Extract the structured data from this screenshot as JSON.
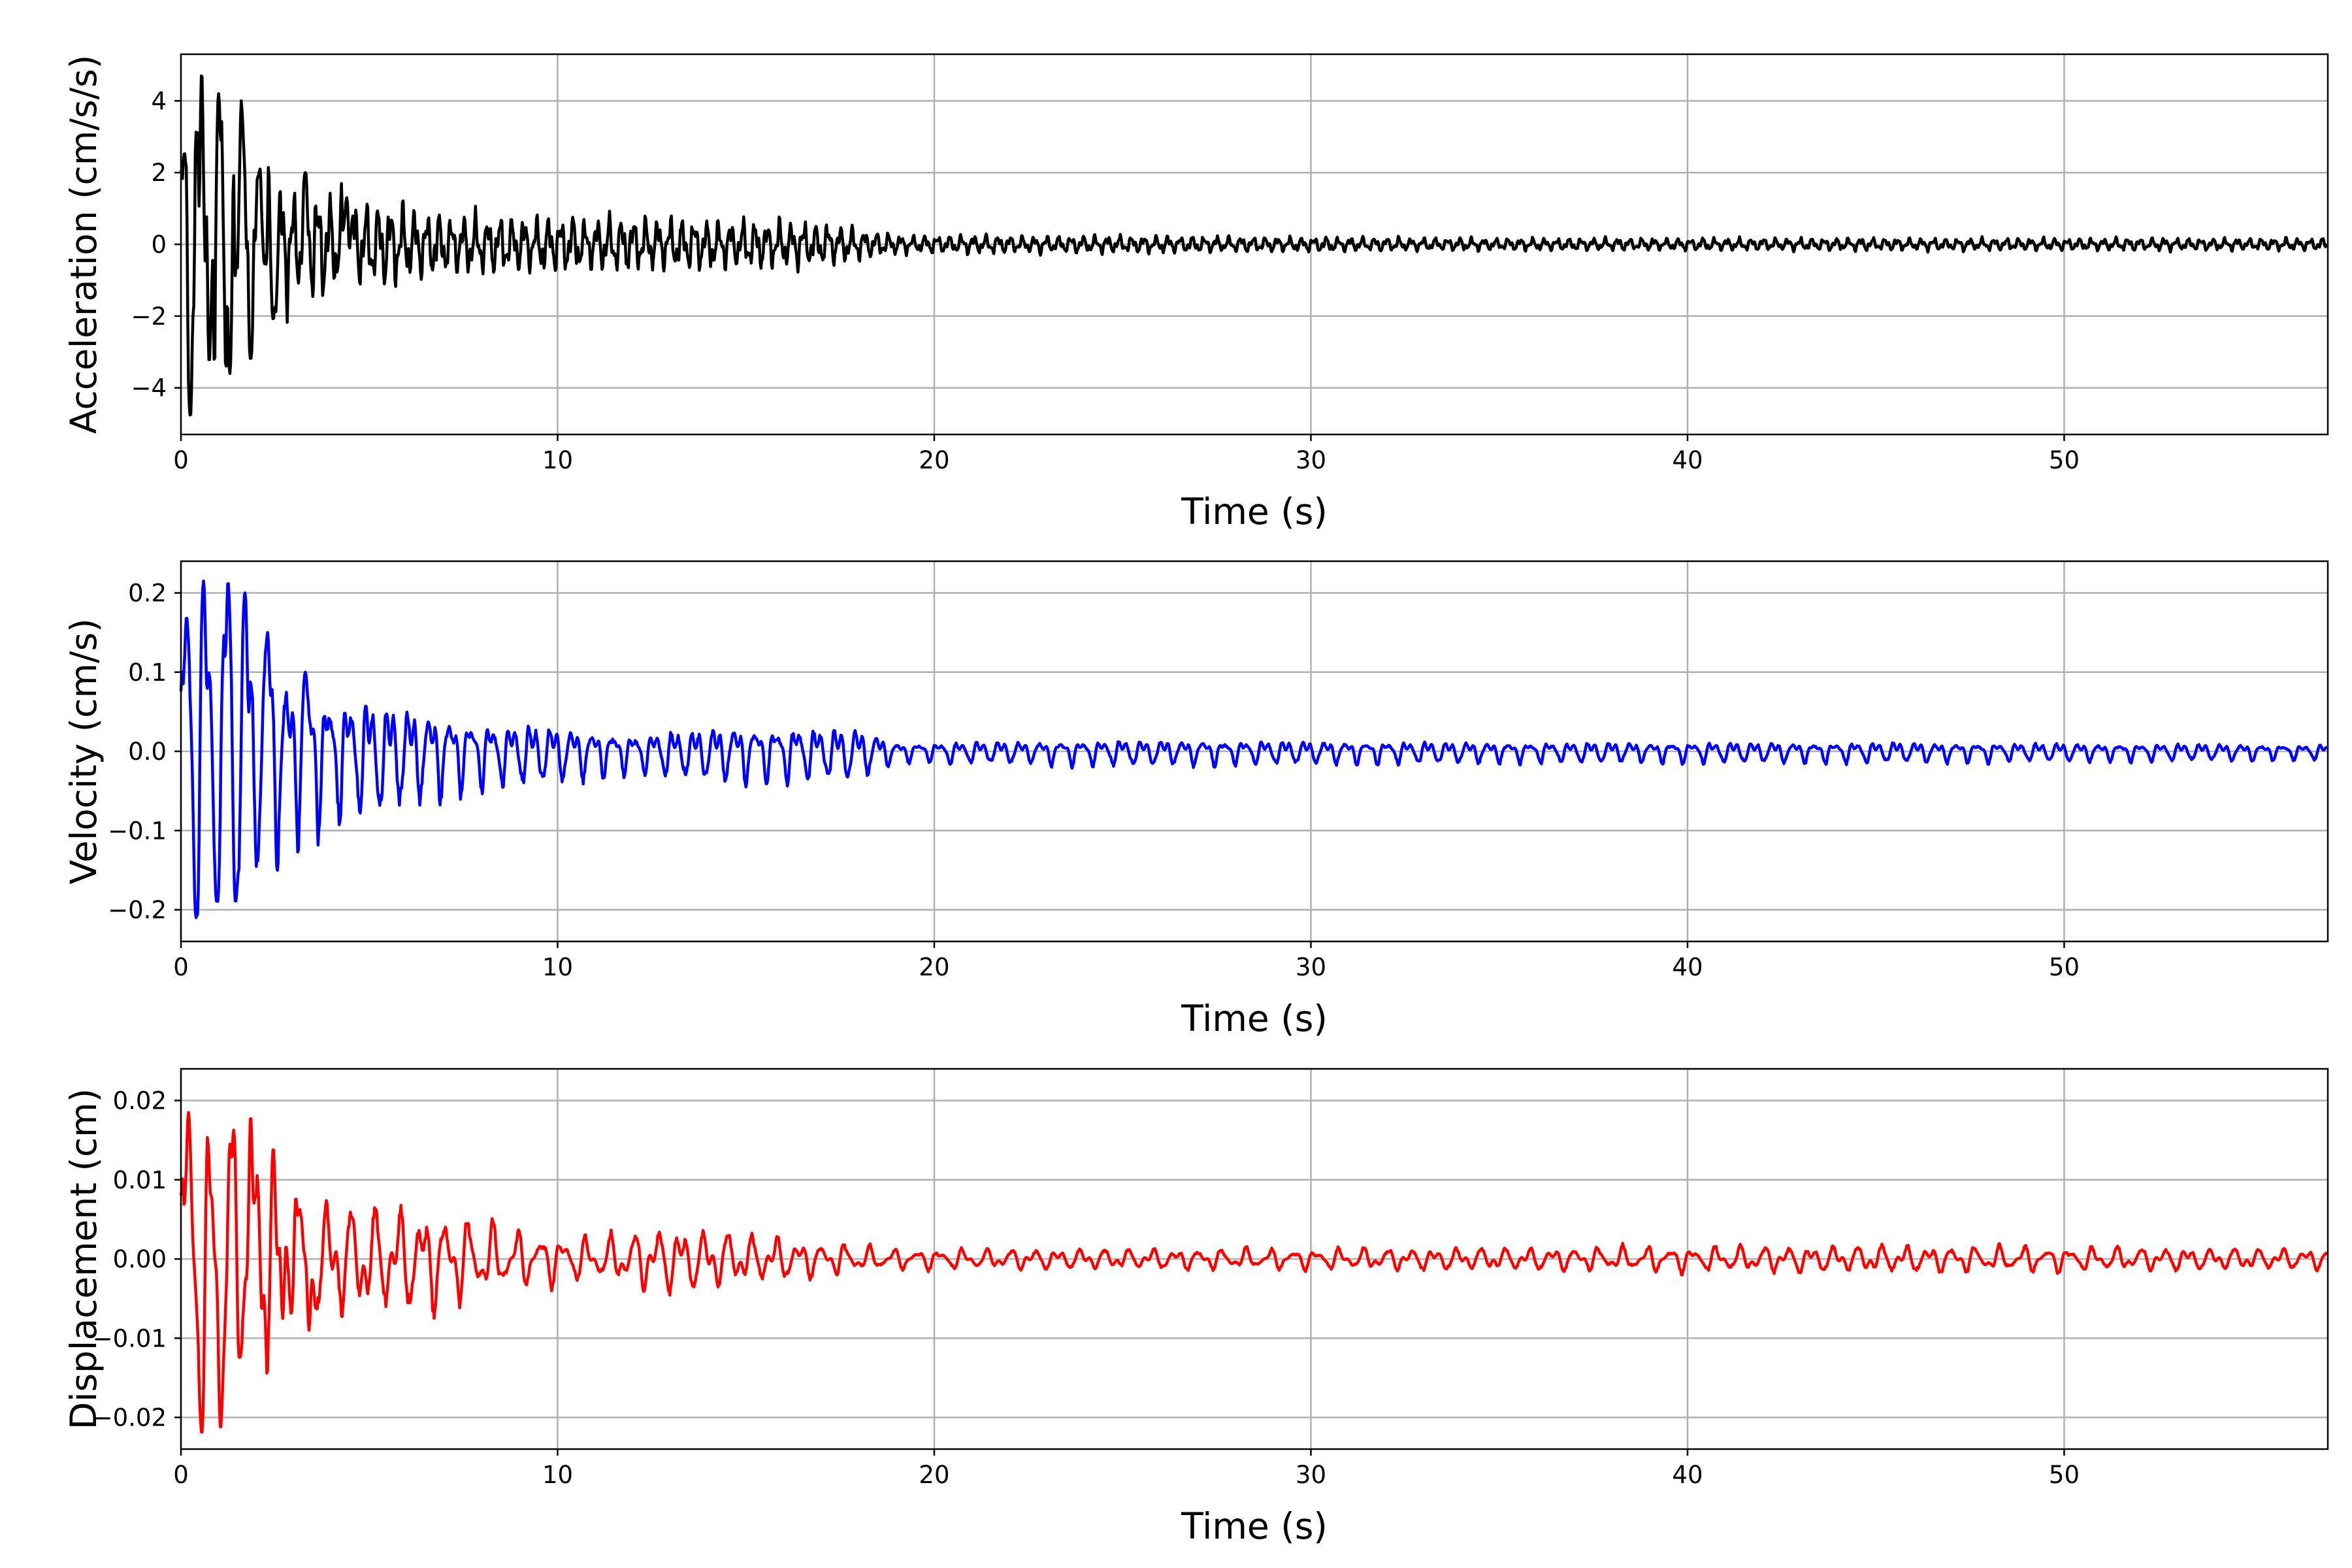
{
  "figure": {
    "background": "#ffffff",
    "grid_color": "#b0b0b0"
  },
  "chart_data": [
    {
      "type": "line",
      "title": "",
      "xlabel": "Time (s)",
      "ylabel": "Acceleration (cm/s/s)",
      "xlim": [
        0,
        57
      ],
      "ylim": [
        -5.3,
        5.3
      ],
      "xticks": [
        0,
        10,
        20,
        30,
        40,
        50
      ],
      "xtick_labels": [
        "0",
        "10",
        "20",
        "30",
        "40",
        "50"
      ],
      "yticks": [
        -4,
        -2,
        0,
        2,
        4
      ],
      "ytick_labels": [
        "−4",
        "−2",
        "0",
        "2",
        "4"
      ],
      "grid": true,
      "legend": "none",
      "color": "#000000",
      "envelope": [
        [
          0,
          4.8
        ],
        [
          1,
          4.3
        ],
        [
          2,
          2.8
        ],
        [
          3,
          1.9
        ],
        [
          5,
          1.4
        ],
        [
          7,
          1.0
        ],
        [
          10,
          0.9
        ],
        [
          13,
          0.85
        ],
        [
          17,
          0.7
        ],
        [
          19,
          0.3
        ],
        [
          25,
          0.28
        ],
        [
          35,
          0.2
        ],
        [
          45,
          0.2
        ],
        [
          57,
          0.2
        ]
      ],
      "series": [
        {
          "peaks": [
            [
              0.1,
              2.6
            ],
            [
              0.25,
              -4.8
            ],
            [
              0.55,
              4.8
            ],
            [
              0.75,
              -3.3
            ],
            [
              1.0,
              4.2
            ],
            [
              1.3,
              -3.6
            ],
            [
              1.6,
              4.0
            ],
            [
              1.85,
              -3.2
            ],
            [
              2.1,
              2.1
            ],
            [
              2.45,
              -2.1
            ],
            [
              3.3,
              2.0
            ],
            [
              4.4,
              1.3
            ]
          ]
        }
      ]
    },
    {
      "type": "line",
      "title": "",
      "xlabel": "Time (s)",
      "ylabel": "Velocity (cm/s)",
      "xlim": [
        0,
        57
      ],
      "ylim": [
        -0.24,
        0.24
      ],
      "xticks": [
        0,
        10,
        20,
        30,
        40,
        50
      ],
      "xtick_labels": [
        "0",
        "10",
        "20",
        "30",
        "40",
        "50"
      ],
      "yticks": [
        -0.2,
        -0.1,
        0.0,
        0.1,
        0.2
      ],
      "ytick_labels": [
        "−0.2",
        "−0.1",
        "0.0",
        "0.1",
        "0.2"
      ],
      "grid": true,
      "legend": "none",
      "color": "#0000ff",
      "envelope": [
        [
          0,
          0.21
        ],
        [
          1.5,
          0.21
        ],
        [
          2.5,
          0.15
        ],
        [
          4,
          0.1
        ],
        [
          6,
          0.08
        ],
        [
          8,
          0.05
        ],
        [
          10,
          0.045
        ],
        [
          12,
          0.03
        ],
        [
          15,
          0.045
        ],
        [
          18,
          0.04
        ],
        [
          19,
          0.015
        ],
        [
          25,
          0.02
        ],
        [
          35,
          0.016
        ],
        [
          45,
          0.016
        ],
        [
          57,
          0.012
        ]
      ],
      "series": [
        {
          "peaks": [
            [
              0.15,
              0.17
            ],
            [
              0.4,
              -0.21
            ],
            [
              0.6,
              0.215
            ],
            [
              0.95,
              -0.19
            ],
            [
              1.25,
              0.215
            ],
            [
              1.45,
              -0.19
            ],
            [
              1.7,
              0.2
            ],
            [
              2.3,
              0.15
            ],
            [
              3.3,
              0.1
            ]
          ]
        }
      ]
    },
    {
      "type": "line",
      "title": "",
      "xlabel": "Time (s)",
      "ylabel": "Displacement (cm)",
      "xlim": [
        0,
        57
      ],
      "ylim": [
        -0.024,
        0.024
      ],
      "xticks": [
        0,
        10,
        20,
        30,
        40,
        50
      ],
      "xtick_labels": [
        "0",
        "10",
        "20",
        "30",
        "40",
        "50"
      ],
      "yticks": [
        -0.02,
        -0.01,
        0.0,
        0.01,
        0.02
      ],
      "ytick_labels": [
        "−0.02",
        "−0.01",
        "0.00",
        "0.01",
        "0.02"
      ],
      "grid": true,
      "legend": "none",
      "color": "#ff0000",
      "envelope": [
        [
          0,
          0.019
        ],
        [
          1.8,
          0.019
        ],
        [
          2.6,
          0.014
        ],
        [
          3.5,
          0.009
        ],
        [
          5,
          0.008
        ],
        [
          7,
          0.007
        ],
        [
          9,
          0.004
        ],
        [
          11,
          0.003
        ],
        [
          13,
          0.005
        ],
        [
          16,
          0.003
        ],
        [
          19,
          0.0015
        ],
        [
          30,
          0.0015
        ],
        [
          45,
          0.002
        ],
        [
          57,
          0.0015
        ]
      ],
      "series": [
        {
          "peaks": [
            [
              0.2,
              0.0185
            ],
            [
              0.55,
              -0.022
            ],
            [
              0.8,
              0.008
            ],
            [
              1.05,
              -0.0215
            ],
            [
              1.3,
              0.0145
            ],
            [
              1.55,
              -0.0125
            ],
            [
              1.85,
              0.0182
            ],
            [
              2.15,
              -0.0065
            ],
            [
              2.45,
              0.014
            ],
            [
              2.7,
              -0.0075
            ],
            [
              3.05,
              0.0078
            ],
            [
              3.4,
              -0.009
            ]
          ]
        }
      ]
    }
  ]
}
